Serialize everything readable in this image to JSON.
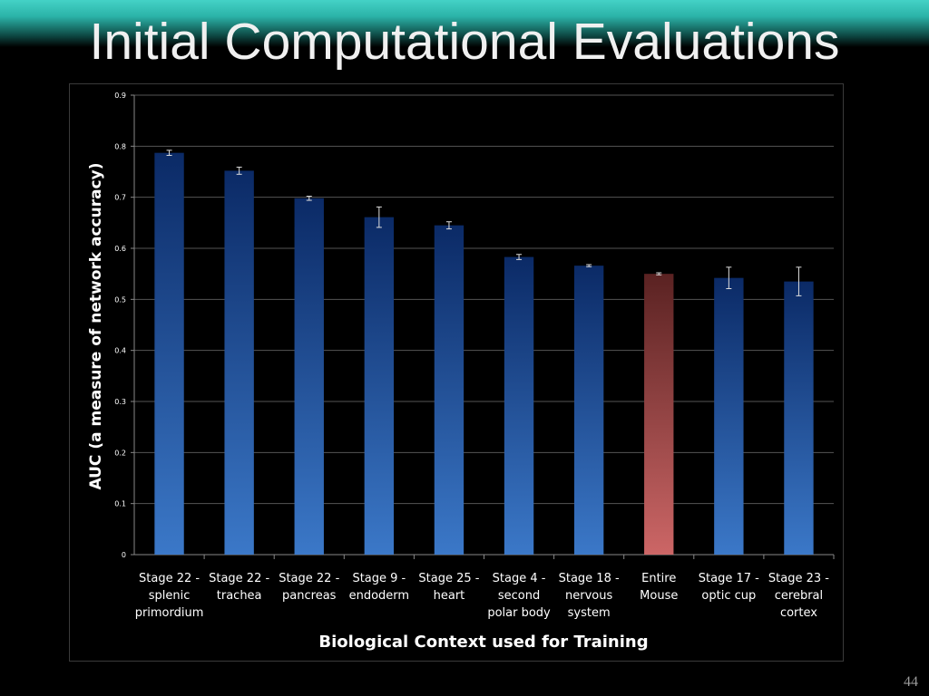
{
  "slide": {
    "title": "Initial Computational Evaluations",
    "page_number": "44"
  },
  "colors": {
    "bar_blue_top": "#0b2a66",
    "bar_blue_bottom": "#3b78c8",
    "bar_red_top": "#5a2222",
    "bar_red_bottom": "#cc6666",
    "background": "#000000",
    "header_accent": "#3cc8bc"
  },
  "chart_data": {
    "type": "bar",
    "xlabel": "Biological Context used for Training",
    "ylabel": "AUC (a measure of network accuracy)",
    "ylim": [
      0,
      0.9
    ],
    "yticks": [
      0,
      0.1,
      0.2,
      0.3,
      0.4,
      0.5,
      0.6,
      0.7,
      0.8,
      0.9
    ],
    "ytick_labels": [
      "0",
      "0.1",
      "0.2",
      "0.3",
      "0.4",
      "0.5",
      "0.6",
      "0.7",
      "0.8",
      "0.9"
    ],
    "grid": true,
    "categories": [
      [
        "Stage 22 -",
        "splenic",
        "primordium"
      ],
      [
        "Stage 22 -",
        "trachea"
      ],
      [
        "Stage 22 -",
        "pancreas"
      ],
      [
        "Stage 9 -",
        "endoderm"
      ],
      [
        "Stage 25 -",
        "heart"
      ],
      [
        "Stage 4 -",
        "second",
        "polar body"
      ],
      [
        "Stage 18 -",
        "nervous",
        "system"
      ],
      [
        "Entire",
        "Mouse"
      ],
      [
        "Stage 17 -",
        "optic cup"
      ],
      [
        "Stage 23 -",
        "cerebral",
        "cortex"
      ]
    ],
    "values": [
      0.787,
      0.752,
      0.698,
      0.661,
      0.645,
      0.583,
      0.566,
      0.55,
      0.542,
      0.535
    ],
    "errors": [
      0.005,
      0.007,
      0.004,
      0.02,
      0.007,
      0.005,
      0.002,
      0.002,
      0.021,
      0.028
    ],
    "highlight_index": 7
  }
}
